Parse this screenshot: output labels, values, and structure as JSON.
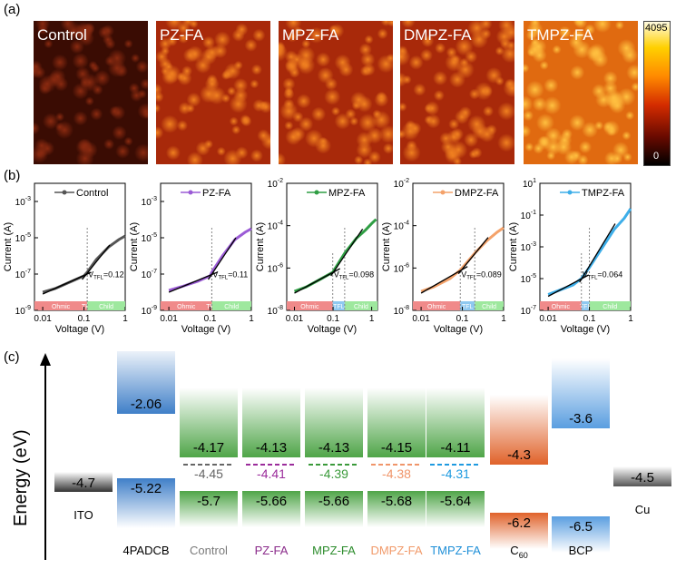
{
  "panels": {
    "a": "(a)",
    "b": "(b)",
    "c": "(c)"
  },
  "afm": {
    "tiles": [
      {
        "label": "Control",
        "brightness": 0.25
      },
      {
        "label": "PZ-FA",
        "brightness": 0.55
      },
      {
        "label": "MPZ-FA",
        "brightness": 0.6
      },
      {
        "label": "DMPZ-FA",
        "brightness": 0.6
      },
      {
        "label": "TMPZ-FA",
        "brightness": 0.8
      }
    ],
    "colorbar": {
      "max": "4095",
      "min": "0"
    }
  },
  "scl": {
    "xlabel": "Voltage (V)",
    "ylabel": "Current (A)",
    "xticks": [
      "0.01",
      "0.1",
      "1"
    ],
    "regions": [
      "Ohmic",
      "TFL",
      "Child"
    ],
    "region_colors": [
      "#f08a8a",
      "#8ec8f0",
      "#9ee89e"
    ]
  },
  "chart_data": [
    {
      "type": "line",
      "series": [
        {
          "name": "Control",
          "color": "#555555"
        }
      ],
      "yticks": [
        {
          "base": "10",
          "exp": "-3"
        },
        {
          "base": "10",
          "exp": "-5"
        },
        {
          "base": "10",
          "exp": "-7"
        },
        {
          "base": "10",
          "exp": "-9"
        }
      ],
      "ylim_log": [
        -9,
        -2
      ],
      "xlim_log": [
        -2.2,
        0
      ],
      "vtfl_value": "=0.12",
      "vtfl_x": 0.12,
      "curve_x": [
        0.01,
        0.02,
        0.05,
        0.1,
        0.12,
        0.2,
        0.4,
        0.7,
        1.0
      ],
      "curve_y": [
        -8.0,
        -7.8,
        -7.4,
        -7.1,
        -6.9,
        -6.2,
        -5.5,
        -5.1,
        -4.9
      ]
    },
    {
      "type": "line",
      "series": [
        {
          "name": "PZ-FA",
          "color": "#9b5bd6"
        }
      ],
      "yticks": [
        {
          "base": "10",
          "exp": "-3"
        },
        {
          "base": "10",
          "exp": "-5"
        },
        {
          "base": "10",
          "exp": "-7"
        },
        {
          "base": "10",
          "exp": "-9"
        }
      ],
      "ylim_log": [
        -9,
        -2
      ],
      "xlim_log": [
        -2.2,
        0
      ],
      "vtfl_value": "=0.11",
      "vtfl_x": 0.11,
      "curve_x": [
        0.01,
        0.02,
        0.05,
        0.1,
        0.11,
        0.2,
        0.4,
        0.7,
        1.0
      ],
      "curve_y": [
        -7.9,
        -7.7,
        -7.4,
        -7.1,
        -6.9,
        -6.0,
        -5.1,
        -4.7,
        -4.5
      ]
    },
    {
      "type": "line",
      "series": [
        {
          "name": "MPZ-FA",
          "color": "#2f9e44"
        }
      ],
      "yticks": [
        {
          "base": "10",
          "exp": "-2"
        },
        {
          "base": "10",
          "exp": "-4"
        },
        {
          "base": "10",
          "exp": "-6"
        },
        {
          "base": "10",
          "exp": "-8"
        }
      ],
      "ylim_log": [
        -8,
        -2
      ],
      "xlim_log": [
        -2.2,
        0.15
      ],
      "vtfl_value": "=0.098",
      "vtfl_x": 0.098,
      "curve_x": [
        0.01,
        0.02,
        0.05,
        0.098,
        0.2,
        0.4,
        0.7,
        1.0,
        1.3
      ],
      "curve_y": [
        -7.1,
        -6.9,
        -6.5,
        -6.2,
        -5.3,
        -4.6,
        -4.2,
        -3.9,
        -3.7
      ]
    },
    {
      "type": "line",
      "series": [
        {
          "name": "DMPZ-FA",
          "color": "#f4a26a"
        }
      ],
      "yticks": [
        {
          "base": "10",
          "exp": "-2"
        },
        {
          "base": "10",
          "exp": "-4"
        },
        {
          "base": "10",
          "exp": "-6"
        },
        {
          "base": "10",
          "exp": "-8"
        }
      ],
      "ylim_log": [
        -8,
        -2
      ],
      "xlim_log": [
        -2.2,
        0
      ],
      "vtfl_value": "=0.089",
      "vtfl_x": 0.089,
      "curve_x": [
        0.01,
        0.02,
        0.05,
        0.089,
        0.2,
        0.4,
        0.7,
        1.0
      ],
      "curve_y": [
        -7.1,
        -6.9,
        -6.5,
        -6.1,
        -5.3,
        -4.7,
        -4.3,
        -4.1
      ]
    },
    {
      "type": "line",
      "series": [
        {
          "name": "TMPZ-FA",
          "color": "#3daee9"
        }
      ],
      "yticks": [
        {
          "base": "10",
          "exp": "1"
        },
        {
          "base": "10",
          "exp": "-1"
        },
        {
          "base": "10",
          "exp": "-3"
        },
        {
          "base": "10",
          "exp": "-5"
        },
        {
          "base": "10",
          "exp": "-7"
        }
      ],
      "ylim_log": [
        -7,
        1
      ],
      "xlim_log": [
        -2.2,
        0
      ],
      "vtfl_value": "=0.064",
      "vtfl_x": 0.064,
      "curve_x": [
        0.01,
        0.02,
        0.04,
        0.064,
        0.1,
        0.2,
        0.4,
        0.7,
        1.0
      ],
      "curve_y": [
        -6.0,
        -5.7,
        -5.4,
        -5.0,
        -4.3,
        -3.1,
        -1.9,
        -1.2,
        -0.6
      ]
    }
  ],
  "energy": {
    "axis_label": "Energy (eV)",
    "columns": [
      {
        "name": "ITO",
        "label_color": "#000",
        "top": null,
        "bottom": "-4.7",
        "single": true,
        "grad": "#333333"
      },
      {
        "name": "4PADCB",
        "label_color": "#000",
        "top": "-2.06",
        "bottom": "-5.22",
        "top_grad": "#3f7fc8",
        "bot_grad": "#3f7fc8"
      },
      {
        "name": "Control",
        "label_color": "#7a7a7a",
        "top": "-4.17",
        "mid": "-4.45",
        "mid_color": "#666666",
        "bottom": "-5.7",
        "grad": "#4fa548"
      },
      {
        "name": "PZ-FA",
        "label_color": "#8a2a8a",
        "top": "-4.13",
        "mid": "-4.41",
        "mid_color": "#9b2c9b",
        "bottom": "-5.66",
        "grad": "#4fa548"
      },
      {
        "name": "MPZ-FA",
        "label_color": "#2c8c2c",
        "top": "-4.13",
        "mid": "-4.39",
        "mid_color": "#3a9a3a",
        "bottom": "-5.66",
        "grad": "#4fa548"
      },
      {
        "name": "DMPZ-FA",
        "label_color": "#f19a6a",
        "top": "-4.15",
        "mid": "-4.38",
        "mid_color": "#f0956a",
        "bottom": "-5.68",
        "grad": "#4fa548"
      },
      {
        "name": "TMPZ-FA",
        "label_color": "#1e8fd8",
        "top": "-4.11",
        "mid": "-4.31",
        "mid_color": "#1e9ae0",
        "bottom": "-5.64",
        "grad": "#4fa548"
      },
      {
        "name": "C",
        "name_sub": "60",
        "label_color": "#000",
        "top": "-4.3",
        "bottom": "-6.2",
        "grad": "#e0622a"
      },
      {
        "name": "BCP",
        "label_color": "#000",
        "top": "-3.6",
        "bottom": "-6.5",
        "grad": "#5a9ee0"
      },
      {
        "name": "Cu",
        "label_color": "#000",
        "top": null,
        "bottom": "-4.5",
        "single": true,
        "grad": "#555555"
      }
    ]
  }
}
